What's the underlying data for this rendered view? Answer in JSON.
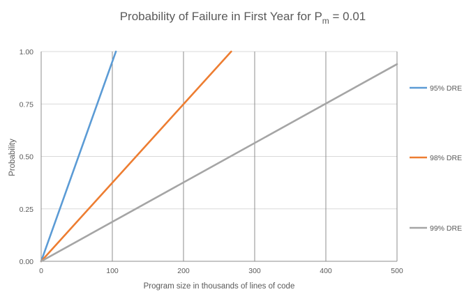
{
  "chart_data": {
    "type": "line",
    "title": "Probability of Failure in First Year for P",
    "title_subscript": "m",
    "title_suffix": " = 0.01",
    "xlabel": "Program size in thousands of lines of code",
    "ylabel": "Probability",
    "xlim": [
      0,
      500
    ],
    "ylim": [
      0,
      1.0
    ],
    "x_ticks": [
      0,
      100,
      200,
      300,
      400,
      500
    ],
    "x_tick_labels": [
      "0",
      "100",
      "200",
      "300",
      "400",
      "500"
    ],
    "y_ticks": [
      0,
      0.25,
      0.5,
      0.75,
      1.0
    ],
    "y_tick_labels": [
      "0.00",
      "0.25",
      "0.50",
      "0.75",
      "1.00"
    ],
    "grid": {
      "vertical": true,
      "horizontal": true
    },
    "legend_placement": "right",
    "series": [
      {
        "name": "95% DRE",
        "color": "#5B9BD5",
        "x": [
          0,
          105
        ],
        "y": [
          0,
          1.0
        ]
      },
      {
        "name": "98% DRE",
        "color": "#ED7D31",
        "x": [
          0,
          267
        ],
        "y": [
          0,
          1.0
        ]
      },
      {
        "name": "99% DRE",
        "color": "#A5A5A5",
        "x": [
          0,
          500
        ],
        "y": [
          0,
          0.94
        ]
      }
    ]
  }
}
